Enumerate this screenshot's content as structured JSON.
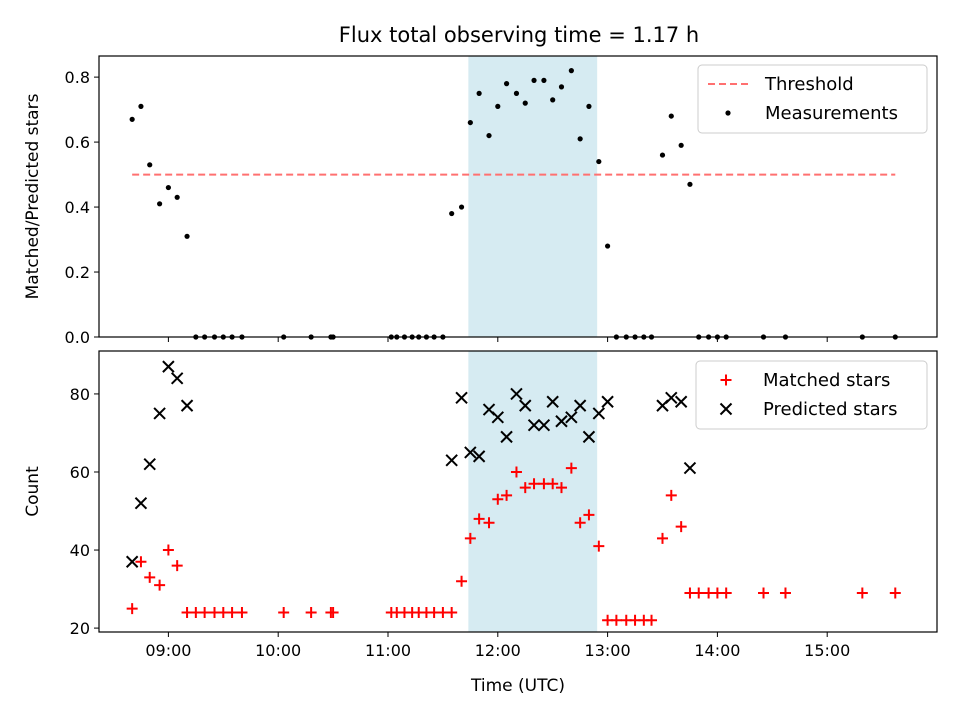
{
  "title": "Flux total observing time = 1.17 h",
  "colors": {
    "threshold": "#ff7070",
    "measurement": "#000000",
    "matched": "#ff0000",
    "predicted": "#000000",
    "highlight": "#add8e6"
  },
  "chart_data": [
    {
      "type": "scatter",
      "ylabel": "Matched/Predicted stars",
      "xlabel": "",
      "xlim": [
        8.368,
        16.0
      ],
      "ylim": [
        0,
        0.865
      ],
      "yticks": [
        0.0,
        0.2,
        0.4,
        0.6,
        0.8
      ],
      "ytick_labels": [
        "0.0",
        "0.2",
        "0.4",
        "0.6",
        "0.8"
      ],
      "shaded_region": {
        "x_start": 11.732,
        "x_end": 12.905
      },
      "threshold": {
        "name": "Threshold",
        "y": 0.5,
        "x_start": 8.67,
        "x_end": 15.62
      },
      "legend": {
        "position": "top-right",
        "entries": [
          "Threshold",
          "Measurements"
        ]
      },
      "series": [
        {
          "name": "Measurements",
          "marker": "dot",
          "x": [
            8.67,
            8.75,
            8.83,
            8.92,
            9.0,
            9.08,
            9.17,
            9.25,
            9.33,
            9.42,
            9.5,
            9.58,
            9.67,
            10.05,
            10.3,
            10.48,
            10.5,
            11.03,
            11.08,
            11.15,
            11.22,
            11.28,
            11.35,
            11.42,
            11.5,
            11.58,
            11.67,
            11.75,
            11.83,
            11.92,
            12.0,
            12.08,
            12.17,
            12.25,
            12.33,
            12.42,
            12.5,
            12.58,
            12.67,
            12.75,
            12.83,
            12.92,
            13.0,
            13.08,
            13.17,
            13.25,
            13.33,
            13.4,
            13.5,
            13.58,
            13.67,
            13.75,
            13.83,
            13.92,
            14.0,
            14.08,
            14.42,
            14.62,
            15.32,
            15.62
          ],
          "y": [
            0.67,
            0.71,
            0.53,
            0.41,
            0.46,
            0.43,
            0.31,
            0,
            0,
            0,
            0,
            0,
            0,
            0,
            0,
            0,
            0,
            0,
            0,
            0,
            0,
            0,
            0,
            0,
            0,
            0.38,
            0.4,
            0.66,
            0.75,
            0.62,
            0.71,
            0.78,
            0.75,
            0.72,
            0.79,
            0.79,
            0.73,
            0.77,
            0.82,
            0.61,
            0.71,
            0.54,
            0.28,
            0,
            0,
            0,
            0,
            0,
            0.56,
            0.68,
            0.59,
            0.47,
            0,
            0,
            0,
            0,
            0,
            0,
            0,
            0
          ]
        }
      ]
    },
    {
      "type": "scatter",
      "ylabel": "Count",
      "xlabel": "Time (UTC)",
      "xlim": [
        8.368,
        16.0
      ],
      "ylim": [
        19,
        91
      ],
      "yticks": [
        20,
        40,
        60,
        80
      ],
      "ytick_labels": [
        "20",
        "40",
        "60",
        "80"
      ],
      "xticks": [
        9,
        10,
        11,
        12,
        13,
        14,
        15
      ],
      "xtick_labels": [
        "09:00",
        "10:00",
        "11:00",
        "12:00",
        "13:00",
        "14:00",
        "15:00"
      ],
      "shaded_region": {
        "x_start": 11.732,
        "x_end": 12.905
      },
      "legend": {
        "position": "top-right",
        "entries": [
          "Matched stars",
          "Predicted stars"
        ]
      },
      "series": [
        {
          "name": "Matched stars",
          "marker": "plus",
          "x": [
            8.67,
            8.75,
            8.83,
            8.92,
            9.0,
            9.08,
            9.17,
            9.25,
            9.33,
            9.42,
            9.5,
            9.58,
            9.67,
            10.05,
            10.3,
            10.48,
            10.5,
            11.03,
            11.08,
            11.15,
            11.22,
            11.28,
            11.35,
            11.42,
            11.5,
            11.58,
            11.67,
            11.75,
            11.83,
            11.92,
            12.0,
            12.08,
            12.17,
            12.25,
            12.33,
            12.42,
            12.5,
            12.58,
            12.67,
            12.75,
            12.83,
            12.92,
            13.0,
            13.08,
            13.17,
            13.25,
            13.33,
            13.4,
            13.5,
            13.58,
            13.67,
            13.75,
            13.83,
            13.92,
            14.0,
            14.08,
            14.42,
            14.62,
            15.32,
            15.62
          ],
          "y": [
            25,
            37,
            33,
            31,
            40,
            36,
            24,
            24,
            24,
            24,
            24,
            24,
            24,
            24,
            24,
            24,
            24,
            24,
            24,
            24,
            24,
            24,
            24,
            24,
            24,
            24,
            32,
            43,
            48,
            47,
            53,
            54,
            60,
            56,
            57,
            57,
            57,
            56,
            61,
            47,
            49,
            41,
            22,
            22,
            22,
            22,
            22,
            22,
            43,
            54,
            46,
            29,
            29,
            29,
            29,
            29,
            29,
            29,
            29,
            29
          ]
        },
        {
          "name": "Predicted stars",
          "marker": "x",
          "x": [
            8.67,
            8.75,
            8.83,
            8.92,
            9.0,
            9.08,
            9.17,
            11.58,
            11.67,
            11.75,
            11.83,
            11.92,
            12.0,
            12.08,
            12.17,
            12.25,
            12.33,
            12.42,
            12.5,
            12.58,
            12.67,
            12.75,
            12.83,
            12.92,
            13.0,
            13.5,
            13.58,
            13.67,
            13.75
          ],
          "y": [
            37,
            52,
            62,
            75,
            87,
            84,
            77,
            63,
            79,
            65,
            64,
            76,
            74,
            69,
            80,
            77,
            72,
            72,
            78,
            73,
            74,
            77,
            69,
            75,
            78,
            77,
            79,
            78,
            61
          ]
        }
      ]
    }
  ]
}
